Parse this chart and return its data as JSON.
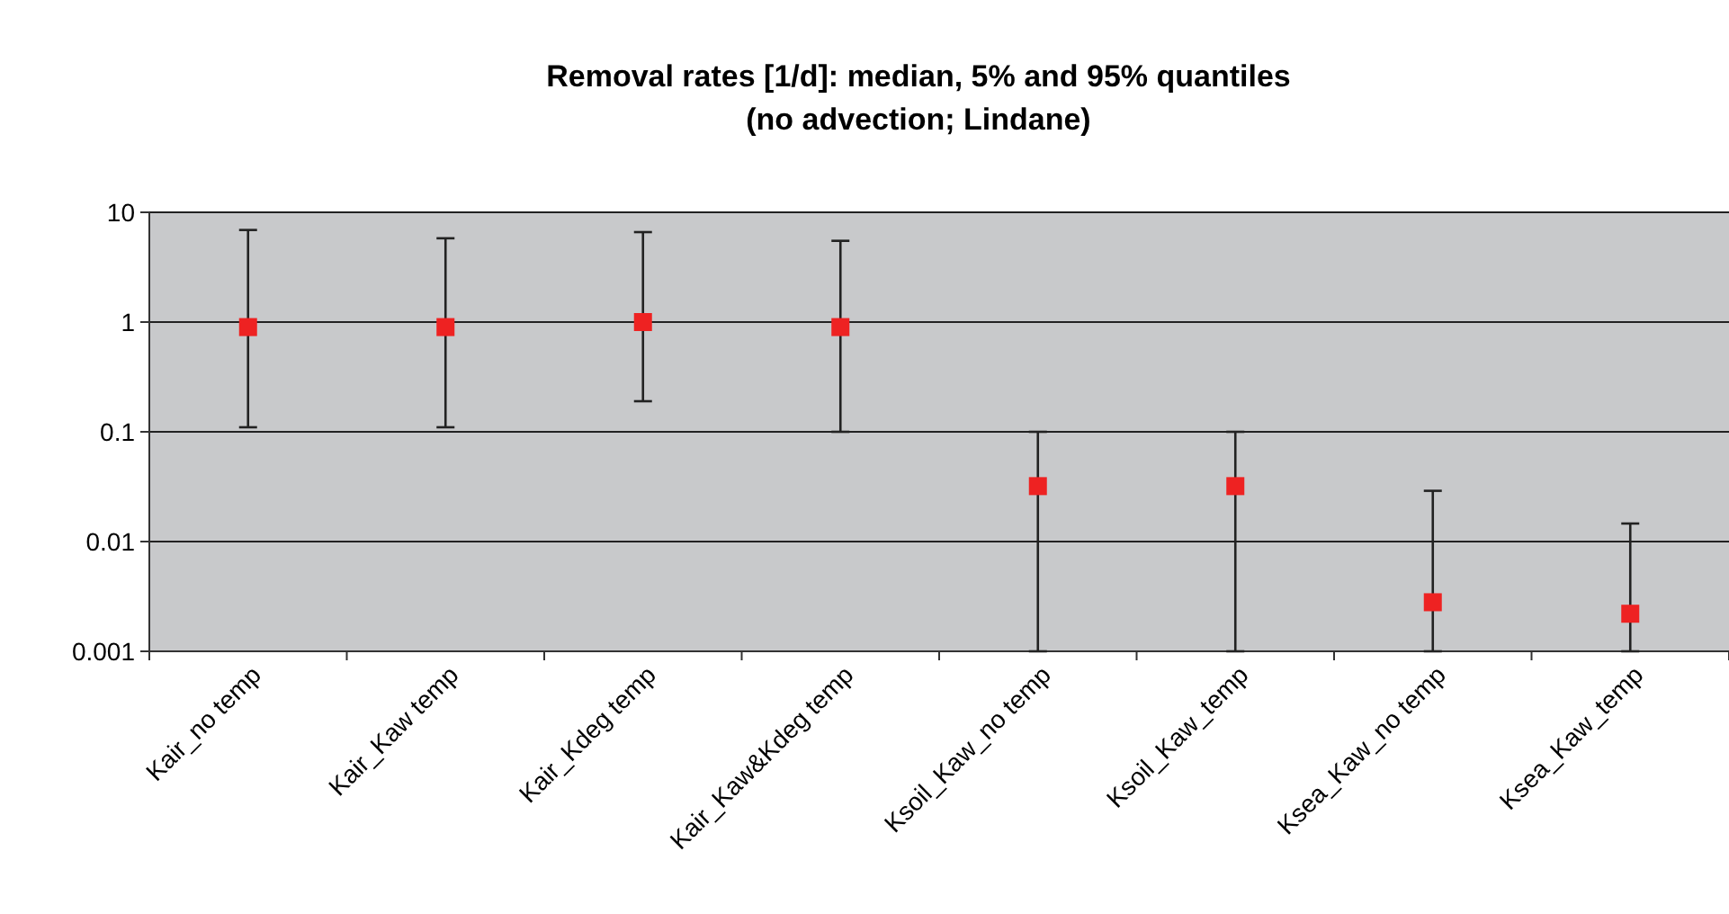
{
  "chart_data": {
    "type": "scatter",
    "title": "Removal rates [1/d]: median, 5% and 95% quantiles",
    "subtitle": "(no advection; Lindane)",
    "categories": [
      "Kair_no temp",
      "Kair_Kaw temp",
      "Kair_Kdeg temp",
      "Kair_Kaw&Kdeg temp",
      "Ksoil_Kaw_no temp",
      "Ksoil_Kaw_temp",
      "Ksea_Kaw_no temp",
      "Ksea_Kaw_temp"
    ],
    "series": [
      {
        "color": "#ee2222",
        "values": [
          0.9,
          0.9,
          1.0,
          0.9,
          0.032,
          0.032,
          0.0028,
          0.0022
        ],
        "errors": [
          [
            0.11,
            6.9
          ],
          [
            0.11,
            5.8
          ],
          [
            0.19,
            6.6
          ],
          [
            0.1,
            5.5
          ],
          [
            0.001,
            0.1
          ],
          [
            0.001,
            0.1
          ],
          [
            0.001,
            0.029
          ],
          [
            0.001,
            0.0146
          ]
        ]
      }
    ],
    "log": true,
    "ylim": [
      0.001,
      10
    ],
    "yticks": [
      0.001,
      0.01,
      0.1,
      1,
      10
    ],
    "grid": "y",
    "marker": "square"
  }
}
